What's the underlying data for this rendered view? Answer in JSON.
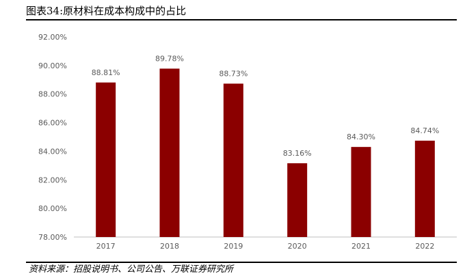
{
  "header": {
    "title": "图表34:原材料在成本构成中的占比"
  },
  "footer": {
    "source": "资料来源：招股说明书、公司公告、万联证券研究所"
  },
  "colors": {
    "bar": "#8b0000",
    "axis": "#bfbfbf",
    "text": "#595959"
  },
  "chart_data": {
    "type": "bar",
    "title": "",
    "xlabel": "",
    "ylabel": "",
    "categories": [
      "2017",
      "2018",
      "2019",
      "2020",
      "2021",
      "2022"
    ],
    "values": [
      88.81,
      89.78,
      88.73,
      83.16,
      84.3,
      84.74
    ],
    "data_labels": [
      "88.81%",
      "89.78%",
      "88.73%",
      "83.16%",
      "84.30%",
      "84.74%"
    ],
    "ylim": [
      78,
      92
    ],
    "yticks": [
      78,
      80,
      82,
      84,
      86,
      88,
      90,
      92
    ],
    "ytick_labels": [
      "78.00%",
      "80.00%",
      "82.00%",
      "84.00%",
      "86.00%",
      "88.00%",
      "90.00%",
      "92.00%"
    ],
    "grid": false,
    "legend": "none"
  }
}
